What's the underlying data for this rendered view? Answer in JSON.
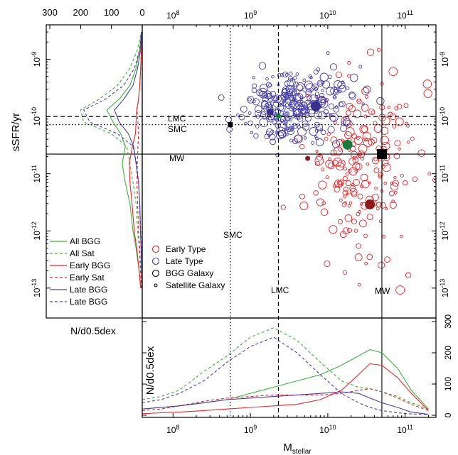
{
  "chart_data": {
    "type": "scatter",
    "panels": {
      "main": {
        "x_scale": "log",
        "y_scale": "log",
        "xlim": [
          40000000,
          250000000000
        ],
        "ylim": [
          3e-14,
          4e-09
        ],
        "x_ticks": [
          {
            "value": 100000000,
            "label": "10^8"
          },
          {
            "value": 1000000000,
            "label": "10^9"
          },
          {
            "value": 10000000000,
            "label": "10^10"
          },
          {
            "value": 100000000000,
            "label": "10^11"
          }
        ],
        "y_ticks": [
          {
            "value": 1e-09,
            "label": "10^-9"
          },
          {
            "value": 1e-10,
            "label": "10^-10"
          },
          {
            "value": 1e-11,
            "label": "10^-11"
          },
          {
            "value": 1e-12,
            "label": "10^-12"
          },
          {
            "value": 1e-13,
            "label": "10^-13"
          }
        ],
        "ylabel": "sSFR/yr",
        "reference_lines": [
          {
            "label": "LMC",
            "axis": "y",
            "value": 1e-10,
            "style": "dashed"
          },
          {
            "label": "SMC",
            "axis": "y",
            "value": 7.2e-11,
            "style": "dotted"
          },
          {
            "label": "MW",
            "axis": "y",
            "value": 2.2e-11,
            "style": "solid"
          },
          {
            "label": "SMC",
            "axis": "x",
            "value": 550000000,
            "style": "dotted"
          },
          {
            "label": "LMC",
            "axis": "x",
            "value": 2300000000,
            "style": "dashed"
          },
          {
            "label": "MW",
            "axis": "x",
            "value": 50000000000,
            "style": "solid"
          }
        ],
        "markers": [
          {
            "name": "SMC",
            "x": 550000000,
            "y": 7.2e-11,
            "shape": "square",
            "size": "small",
            "color": "#000000"
          },
          {
            "name": "MW",
            "x": 50000000000,
            "y": 2.2e-11,
            "shape": "square",
            "size": "large",
            "color": "#000000"
          },
          {
            "x": 2300000000,
            "y": 1.02e-10,
            "shape": "circle",
            "color": "#1a7a3e",
            "size": "small"
          },
          {
            "x": 18000000000,
            "y": 3.2e-11,
            "shape": "circle",
            "color": "#1a7a3e",
            "size": "large"
          },
          {
            "x": 7000000000,
            "y": 1.5e-10,
            "shape": "circle",
            "color": "#3a2f8a",
            "size": "large"
          },
          {
            "x": 1800000000,
            "y": 1.2e-10,
            "shape": "circle",
            "color": "#3a2f8a",
            "size": "medium"
          },
          {
            "x": 35000000000,
            "y": 2.9e-12,
            "shape": "circle",
            "color": "#8b1a1a",
            "size": "large"
          },
          {
            "x": 5500000000,
            "y": 1.85e-11,
            "shape": "circle",
            "color": "#8b1a1a",
            "size": "small"
          }
        ],
        "legend_entries": [
          {
            "label": "Early Type",
            "color": "#e8282c",
            "marker": "circle"
          },
          {
            "label": "Late Type",
            "color": "#4a3fa8",
            "marker": "circle"
          },
          {
            "label": "BGG Galaxy",
            "color": "#000000",
            "marker": "large-circle"
          },
          {
            "label": "Satellite Galaxy",
            "color": "#000000",
            "marker": "small-circle"
          }
        ],
        "legend_placement": "bottom-left"
      },
      "left": {
        "xlabel": "N/d0.5dex",
        "x_axis_position": "top",
        "x_direction": "reversed",
        "xlim": [
          0,
          300
        ],
        "x_ticks": [
          0,
          100,
          200,
          300
        ],
        "y_scale": "log",
        "legend_placement": "bottom-left",
        "series": [
          {
            "name": "All BGG",
            "color": "#3db33d",
            "style": "solid",
            "y": [
              1e-13,
              2e-13,
              5e-13,
              1e-12,
              3e-12,
              7e-12,
              1.5e-11,
              3e-11,
              5e-11,
              8e-11,
              1.3e-10,
              2e-10,
              3.5e-10,
              7e-10,
              1.5e-09,
              3e-09
            ],
            "values": [
              5,
              10,
              20,
              30,
              40,
              55,
              65,
              55,
              70,
              95,
              115,
              75,
              40,
              20,
              8,
              3
            ]
          },
          {
            "name": "All Sat",
            "color": "#3db33d",
            "style": "dashed",
            "y": [
              1e-13,
              2e-13,
              5e-13,
              1e-12,
              3e-12,
              7e-12,
              1.5e-11,
              3e-11,
              5e-11,
              8e-11,
              1.3e-10,
              2e-10,
              3.5e-10,
              7e-10,
              1.5e-09,
              3e-09
            ],
            "values": [
              3,
              6,
              10,
              15,
              20,
              30,
              40,
              50,
              100,
              190,
              200,
              140,
              80,
              40,
              15,
              3
            ]
          },
          {
            "name": "Early BGG",
            "color": "#e8282c",
            "style": "solid",
            "y": [
              1e-13,
              2e-13,
              5e-13,
              1e-12,
              3e-12,
              7e-12,
              1.5e-11,
              3e-11,
              5e-11,
              8e-11,
              1.3e-10,
              2e-10,
              3.5e-10,
              7e-10,
              1.5e-09,
              3e-09
            ],
            "values": [
              5,
              10,
              18,
              26,
              33,
              40,
              42,
              32,
              22,
              20,
              18,
              12,
              8,
              5,
              3,
              1
            ]
          },
          {
            "name": "Early Sat",
            "color": "#e8282c",
            "style": "dashed",
            "y": [
              1e-13,
              2e-13,
              5e-13,
              1e-12,
              3e-12,
              7e-12,
              1.5e-11,
              3e-11,
              5e-11,
              8e-11,
              1.3e-10,
              2e-10,
              3.5e-10,
              7e-10,
              1.5e-09,
              3e-09
            ],
            "values": [
              3,
              5,
              8,
              12,
              15,
              17,
              16,
              14,
              12,
              14,
              17,
              12,
              8,
              5,
              2,
              1
            ]
          },
          {
            "name": "Late BGG",
            "color": "#4a3fa8",
            "style": "solid",
            "y": [
              1e-13,
              2e-13,
              5e-13,
              1e-12,
              3e-12,
              7e-12,
              1.5e-11,
              3e-11,
              5e-11,
              8e-11,
              1.3e-10,
              2e-10,
              3.5e-10,
              7e-10,
              1.5e-09,
              3e-09
            ],
            "values": [
              1,
              2,
              4,
              6,
              8,
              12,
              20,
              28,
              45,
              75,
              90,
              60,
              30,
              15,
              5,
              2
            ]
          },
          {
            "name": "Late BGG",
            "color": "#4a3fa8",
            "style": "dashed",
            "y": [
              1e-13,
              2e-13,
              5e-13,
              1e-12,
              3e-12,
              7e-12,
              1.5e-11,
              3e-11,
              5e-11,
              8e-11,
              1.3e-10,
              2e-10,
              3.5e-10,
              7e-10,
              1.5e-09,
              3e-09
            ],
            "values": [
              1,
              2,
              3,
              5,
              8,
              12,
              18,
              30,
              80,
              170,
              190,
              120,
              60,
              25,
              8,
              2
            ]
          }
        ]
      },
      "bottom": {
        "xlabel": "M_stellar",
        "ylabel": "N/d0.5dex",
        "x_scale": "log",
        "ylim": [
          0,
          300
        ],
        "y_ticks": [
          0,
          100,
          200,
          300
        ],
        "series": [
          {
            "name": "All BGG",
            "color": "#3db33d",
            "style": "solid",
            "x": [
              40000000,
              70000000,
              120000000,
              250000000,
              500000000,
              1000000000,
              2000000000,
              4000000000,
              8000000000,
              15000000000,
              25000000000,
              35000000000,
              50000000000,
              80000000000,
              120000000000,
              200000000000
            ],
            "values": [
              20,
              25,
              30,
              40,
              50,
              70,
              90,
              110,
              130,
              160,
              190,
              210,
              200,
              150,
              80,
              20
            ]
          },
          {
            "name": "All Sat",
            "color": "#3db33d",
            "style": "dashed",
            "x": [
              40000000,
              70000000,
              120000000,
              250000000,
              500000000,
              1000000000,
              2000000000,
              4000000000,
              8000000000,
              15000000000,
              25000000000,
              35000000000,
              50000000000,
              80000000000,
              120000000000,
              200000000000
            ],
            "values": [
              50,
              60,
              80,
              140,
              190,
              250,
              280,
              240,
              170,
              110,
              90,
              85,
              75,
              60,
              40,
              20
            ]
          },
          {
            "name": "Early BGG",
            "color": "#e8282c",
            "style": "solid",
            "x": [
              40000000,
              70000000,
              120000000,
              250000000,
              500000000,
              1000000000,
              2000000000,
              4000000000,
              8000000000,
              15000000000,
              25000000000,
              35000000000,
              50000000000,
              80000000000,
              120000000000,
              200000000000
            ],
            "values": [
              5,
              8,
              10,
              15,
              20,
              25,
              30,
              35,
              50,
              80,
              130,
              165,
              160,
              120,
              70,
              15
            ]
          },
          {
            "name": "Early Sat",
            "color": "#e8282c",
            "style": "dashed",
            "x": [
              40000000,
              70000000,
              120000000,
              250000000,
              500000000,
              1000000000,
              2000000000,
              4000000000,
              8000000000,
              15000000000,
              25000000000,
              35000000000,
              50000000000,
              80000000000,
              120000000000,
              200000000000
            ],
            "values": [
              15,
              20,
              30,
              45,
              55,
              60,
              65,
              65,
              65,
              70,
              80,
              85,
              75,
              55,
              35,
              15
            ]
          },
          {
            "name": "Late BGG",
            "color": "#4a3fa8",
            "style": "solid",
            "x": [
              40000000,
              70000000,
              120000000,
              250000000,
              500000000,
              1000000000,
              2000000000,
              4000000000,
              8000000000,
              15000000000,
              25000000000,
              35000000000,
              50000000000,
              80000000000,
              120000000000,
              200000000000
            ],
            "values": [
              20,
              25,
              30,
              40,
              50,
              55,
              60,
              65,
              70,
              75,
              70,
              55,
              40,
              25,
              10,
              3
            ]
          },
          {
            "name": "Late BGG",
            "color": "#4a3fa8",
            "style": "dashed",
            "x": [
              40000000,
              70000000,
              120000000,
              250000000,
              500000000,
              1000000000,
              2000000000,
              4000000000,
              8000000000,
              15000000000,
              25000000000,
              35000000000,
              50000000000,
              80000000000,
              120000000000,
              200000000000
            ],
            "values": [
              40,
              50,
              70,
              110,
              170,
              220,
              250,
              200,
              130,
              70,
              40,
              25,
              15,
              8,
              4,
              2
            ]
          }
        ]
      }
    },
    "scatter_groups": [
      {
        "type": "Early",
        "color": "#e8282c",
        "center": [
          30000000000,
          1.2e-11
        ],
        "spread": [
          0.35,
          0.75
        ],
        "count": 210,
        "seed": 11
      },
      {
        "type": "Late",
        "color": "#4a3fa8",
        "center": [
          4000000000,
          1.5e-10
        ],
        "spread": [
          0.35,
          0.3
        ],
        "count": 290,
        "seed": 7
      }
    ]
  }
}
